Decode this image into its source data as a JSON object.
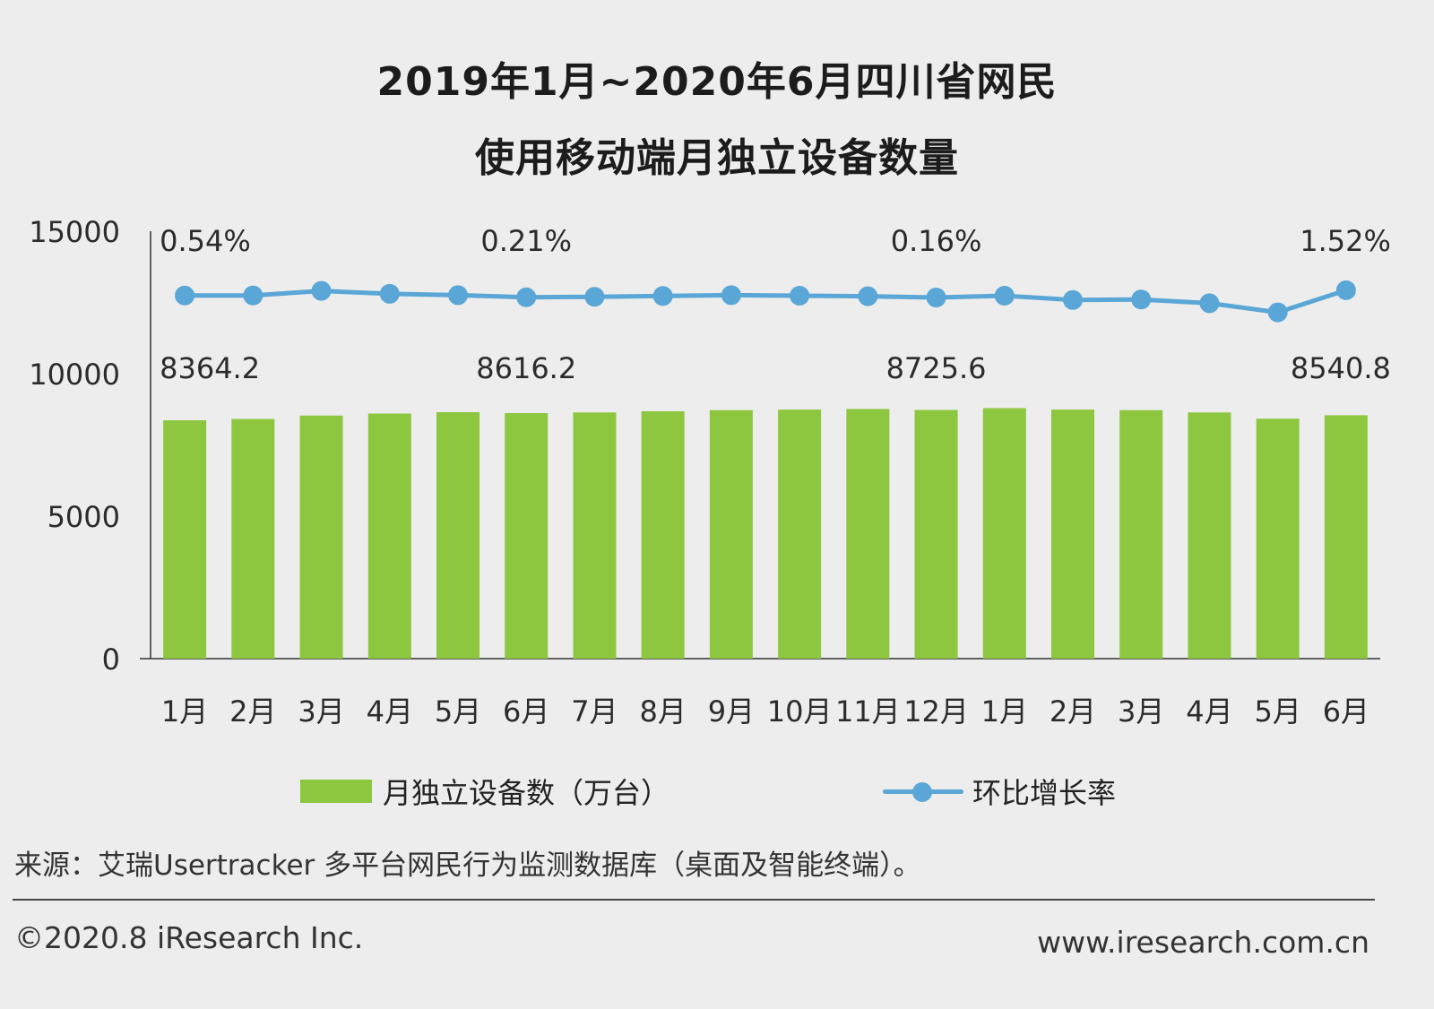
{
  "title_line1": "2019年1月~2020年6月四川省网民",
  "title_line2": "使用移动端月独立设备数量",
  "legend": {
    "bars_label": "月独立设备数（万台）",
    "line_label": "环比增长率"
  },
  "source": "来源：艾瑞Usertracker 多平台网民行为监测数据库（桌面及智能终端）。",
  "copyright": "©2020.8 iResearch Inc.",
  "website": "www.iresearch.com.cn",
  "colors": {
    "bar": "#8dc63f",
    "line": "#5aa6d6",
    "axis": "#333333"
  },
  "chart_data": {
    "type": "bar",
    "categories": [
      "1月",
      "2月",
      "3月",
      "4月",
      "5月",
      "6月",
      "7月",
      "8月",
      "9月",
      "10月",
      "11月",
      "12月",
      "1月",
      "2月",
      "3月",
      "4月",
      "5月",
      "6月"
    ],
    "ylim": [
      0,
      15000
    ],
    "yticks": [
      "0",
      "5000",
      "10000",
      "15000"
    ],
    "series": [
      {
        "name": "月独立设备数（万台）",
        "type": "bar",
        "values": [
          8364.2,
          8410,
          8530,
          8600,
          8650,
          8616.2,
          8640,
          8680,
          8720,
          8740,
          8760,
          8725.6,
          8790,
          8740,
          8720,
          8640,
          8420,
          8540.8
        ]
      },
      {
        "name": "环比增长率",
        "type": "line",
        "values": [
          0.54,
          0.55,
          1.4,
          0.85,
          0.6,
          0.21,
          0.3,
          0.45,
          0.6,
          0.5,
          0.4,
          0.16,
          0.5,
          -0.3,
          -0.2,
          -0.9,
          -2.6,
          1.52
        ]
      }
    ],
    "bar_labels": [
      {
        "index": 0,
        "text": "8364.2"
      },
      {
        "index": 5,
        "text": "8616.2"
      },
      {
        "index": 11,
        "text": "8725.6"
      },
      {
        "index": 17,
        "text": "8540.8"
      }
    ],
    "line_labels": [
      {
        "index": 0,
        "text": "0.54%"
      },
      {
        "index": 5,
        "text": "0.21%"
      },
      {
        "index": 11,
        "text": "0.16%"
      },
      {
        "index": 17,
        "text": "1.52%"
      }
    ]
  }
}
